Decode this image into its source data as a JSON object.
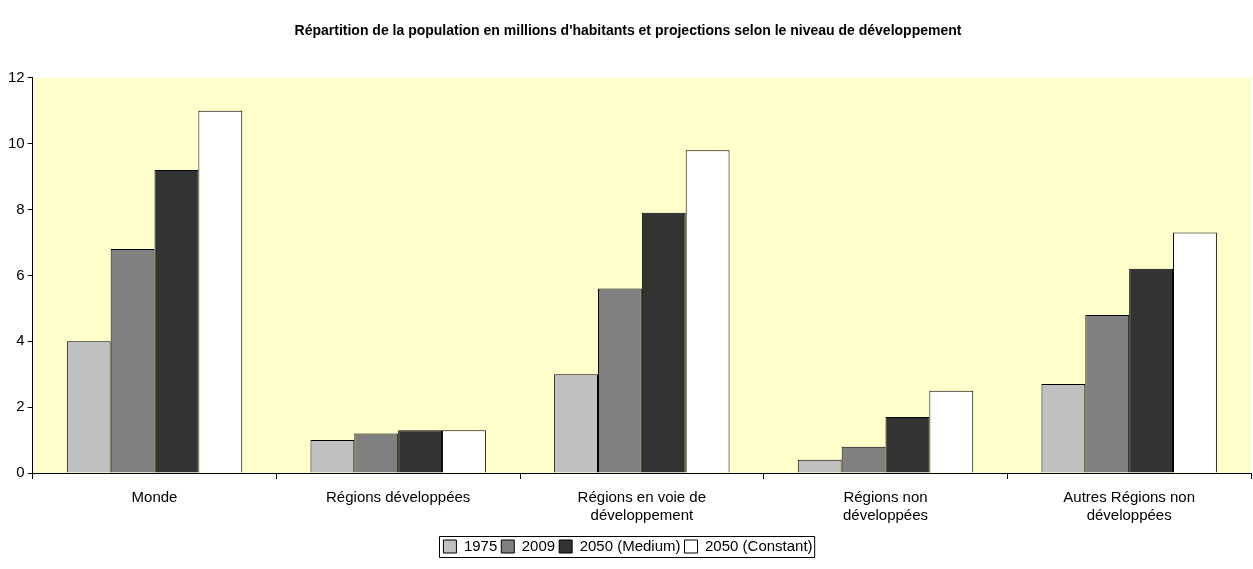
{
  "chart_data": {
    "type": "bar",
    "title": "Répartition de la population en millions d'habitants et projections selon le niveau de développement",
    "categories": [
      "Monde",
      "Régions développées",
      "Régions en voie de développement",
      "Régions non développées",
      "Autres Régions non développées"
    ],
    "series": [
      {
        "name": "1975",
        "color": "#c0c0c0",
        "values": [
          4.0,
          1.0,
          3.0,
          0.4,
          2.7
        ]
      },
      {
        "name": "2009",
        "color": "#808080",
        "values": [
          6.8,
          1.2,
          5.6,
          0.8,
          4.8
        ]
      },
      {
        "name": "2050 (Medium)",
        "color": "#333333",
        "values": [
          9.2,
          1.3,
          7.9,
          1.7,
          6.2
        ]
      },
      {
        "name": "2050 (Constant)",
        "color": "#ffffff",
        "values": [
          11.0,
          1.3,
          9.8,
          2.5,
          7.3
        ]
      }
    ],
    "ylim": [
      0,
      12
    ],
    "yticks": [
      0,
      2,
      4,
      6,
      8,
      10,
      12
    ],
    "grid": false,
    "legend": "bottom"
  }
}
